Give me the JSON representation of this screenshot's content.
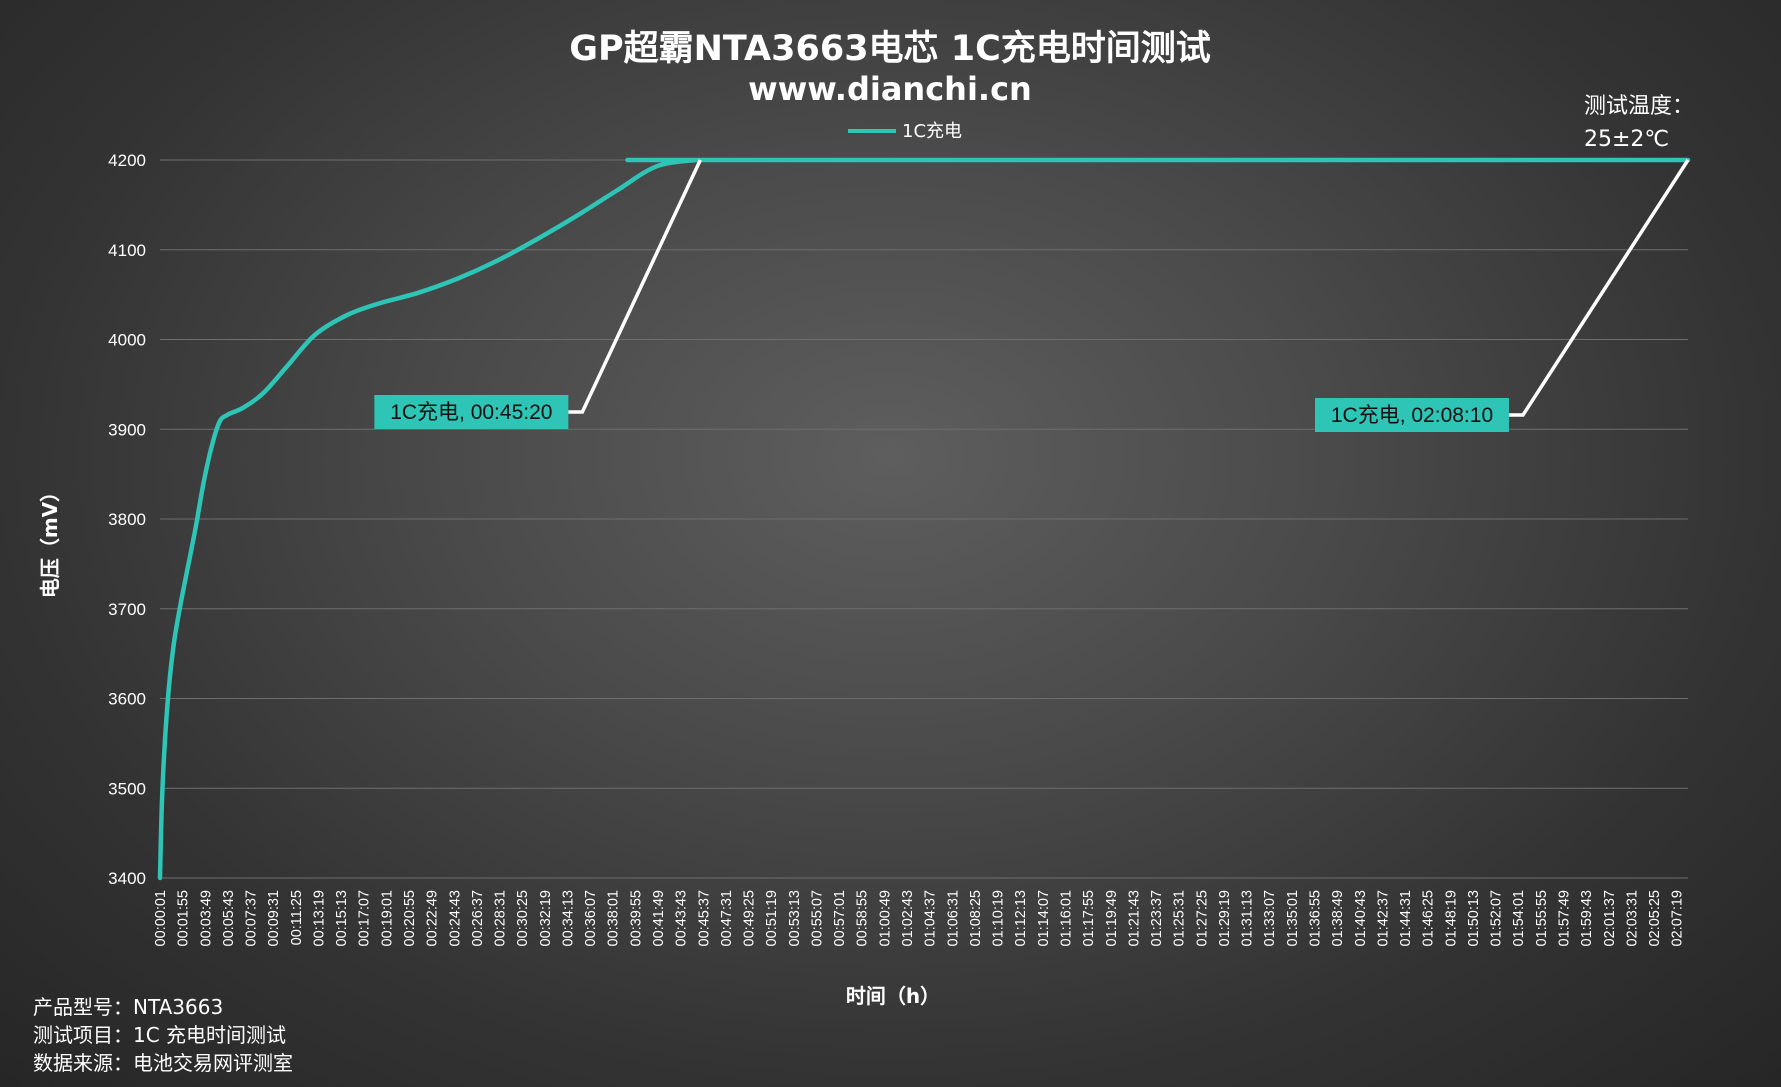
{
  "header": {
    "title": "GP超霸NTA3663电芯 1C充电时间测试",
    "subtitle": "www.dianchi.cn"
  },
  "temperature_note": {
    "line1": "测试温度：",
    "line2": "25±2℃"
  },
  "footer": {
    "line1": "产品型号：NTA3663",
    "line2": "测试项目：1C 充电时间测试",
    "line3": "数据来源：电池交易网评测室"
  },
  "colors": {
    "series": "#2ec4b6",
    "grid": "#6e6e6e",
    "callout_line": "#ffffff"
  },
  "chart_data": {
    "type": "line",
    "xlabel": "时间（h）",
    "ylabel": "电压（mV）",
    "ylim": [
      3400,
      4200
    ],
    "yticks": [
      3400,
      3500,
      3600,
      3700,
      3800,
      3900,
      4000,
      4100,
      4200
    ],
    "xlim_seconds": [
      1,
      7690
    ],
    "grid": "horizontal",
    "legend_position": "top-center",
    "xtick_labels": [
      "00:00:01",
      "00:01:55",
      "00:03:49",
      "00:05:43",
      "00:07:37",
      "00:09:31",
      "00:11:25",
      "00:13:19",
      "00:15:13",
      "00:17:07",
      "00:19:01",
      "00:20:55",
      "00:22:49",
      "00:24:43",
      "00:26:37",
      "00:28:31",
      "00:30:25",
      "00:32:19",
      "00:34:13",
      "00:36:07",
      "00:38:01",
      "00:39:55",
      "00:41:49",
      "00:43:43",
      "00:45:37",
      "00:47:31",
      "00:49:25",
      "00:51:19",
      "00:53:13",
      "00:55:07",
      "00:57:01",
      "00:58:55",
      "01:00:49",
      "01:02:43",
      "01:04:37",
      "01:06:31",
      "01:08:25",
      "01:10:19",
      "01:12:13",
      "01:14:07",
      "01:16:01",
      "01:17:55",
      "01:19:49",
      "01:21:43",
      "01:23:37",
      "01:25:31",
      "01:27:25",
      "01:29:19",
      "01:31:13",
      "01:33:07",
      "01:35:01",
      "01:36:55",
      "01:38:49",
      "01:40:43",
      "01:42:37",
      "01:44:31",
      "01:46:25",
      "01:48:19",
      "01:50:13",
      "01:52:07",
      "01:54:01",
      "01:55:55",
      "01:57:49",
      "01:59:43",
      "02:01:37",
      "02:03:31",
      "02:05:25",
      "02:07:19"
    ],
    "series": [
      {
        "name": "1C充电",
        "x_seconds": [
          1,
          10,
          25,
          45,
          70,
          100,
          140,
          180,
          220,
          260,
          300,
          340,
          420,
          520,
          640,
          780,
          940,
          1100,
          1300,
          1500,
          1700,
          1900,
          2100,
          2300,
          2500,
          2700,
          2720,
          7690
        ],
        "values": [
          3400,
          3480,
          3550,
          3610,
          3660,
          3700,
          3745,
          3790,
          3840,
          3880,
          3908,
          3916,
          3924,
          3940,
          3970,
          4005,
          4027,
          4040,
          4052,
          4068,
          4088,
          4112,
          4138,
          4166,
          4193,
          4200,
          4200,
          4200
        ]
      }
    ],
    "annotations": [
      {
        "label": "1C充电, 00:45:20",
        "x_seconds": 2720,
        "y": 4200
      },
      {
        "label": "1C充电, 02:08:10",
        "x_seconds": 7690,
        "y": 4200
      }
    ]
  }
}
